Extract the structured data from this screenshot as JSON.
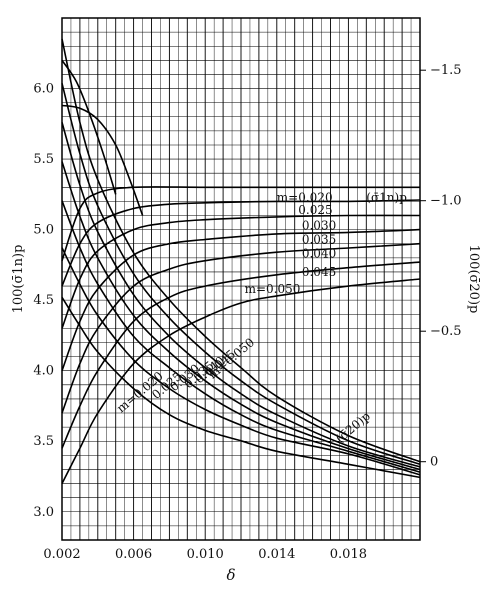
{
  "chart_data": {
    "type": "line",
    "xlabel": "δ",
    "ylabel_left": "100(σ̄1n)p",
    "ylabel_right": "100(σ̄20)p",
    "xlim": [
      0.002,
      0.022
    ],
    "ylim_left": [
      2.8,
      6.5
    ],
    "ylim_right": [
      0.3,
      -1.7
    ],
    "x_ticks": [
      0.002,
      0.006,
      0.01,
      0.014,
      0.018
    ],
    "x_tick_labels": [
      "0.002",
      "0.006",
      "0.010",
      "0.014",
      "0.018"
    ],
    "y_ticks_left": [
      3.0,
      3.5,
      4.0,
      4.5,
      5.0,
      5.5,
      6.0
    ],
    "y_tick_labels_left": [
      "3.0",
      "3.5",
      "4.0",
      "4.5",
      "5.0",
      "5.5",
      "6.0"
    ],
    "y_ticks_right": [
      0,
      -0.5,
      -1.0,
      -1.5
    ],
    "y_tick_labels_right": [
      "0",
      "−0.5",
      "−1.0",
      "−1.5"
    ],
    "grid": true,
    "legend": "none",
    "group_labels": {
      "sigma1n": "(σ̄1n)p",
      "sigma20": "(σ̄20)p"
    },
    "curve_labels_sigma1n": [
      "m=0.020",
      "0.025",
      "0.030",
      "0.035",
      "0.040",
      "0.045",
      "m=0.050"
    ],
    "curve_labels_sigma20": [
      "m=0.050",
      "0.045",
      "0.040",
      "0.035",
      "0.030",
      "0.025",
      "m=0.020"
    ],
    "series": [
      {
        "group": "sigma1n",
        "m": 0.02,
        "axis": "left",
        "points": [
          [
            0.002,
            4.78
          ],
          [
            0.003,
            5.15
          ],
          [
            0.004,
            5.26
          ],
          [
            0.006,
            5.3
          ],
          [
            0.01,
            5.3
          ],
          [
            0.014,
            5.3
          ],
          [
            0.018,
            5.3
          ],
          [
            0.022,
            5.3
          ]
        ]
      },
      {
        "group": "sigma1n",
        "m": 0.025,
        "axis": "left",
        "points": [
          [
            0.002,
            4.6
          ],
          [
            0.003,
            4.9
          ],
          [
            0.004,
            5.05
          ],
          [
            0.006,
            5.15
          ],
          [
            0.008,
            5.18
          ],
          [
            0.01,
            5.19
          ],
          [
            0.014,
            5.2
          ],
          [
            0.018,
            5.2
          ],
          [
            0.022,
            5.21
          ]
        ]
      },
      {
        "group": "sigma1n",
        "m": 0.03,
        "axis": "left",
        "points": [
          [
            0.002,
            4.3
          ],
          [
            0.003,
            4.65
          ],
          [
            0.004,
            4.85
          ],
          [
            0.006,
            5.0
          ],
          [
            0.008,
            5.05
          ],
          [
            0.01,
            5.07
          ],
          [
            0.014,
            5.09
          ],
          [
            0.018,
            5.1
          ],
          [
            0.022,
            5.1
          ]
        ]
      },
      {
        "group": "sigma1n",
        "m": 0.035,
        "axis": "left",
        "points": [
          [
            0.002,
            4.0
          ],
          [
            0.003,
            4.35
          ],
          [
            0.004,
            4.58
          ],
          [
            0.006,
            4.82
          ],
          [
            0.008,
            4.9
          ],
          [
            0.01,
            4.93
          ],
          [
            0.014,
            4.97
          ],
          [
            0.018,
            4.98
          ],
          [
            0.022,
            5.0
          ]
        ]
      },
      {
        "group": "sigma1n",
        "m": 0.04,
        "axis": "left",
        "points": [
          [
            0.002,
            3.7
          ],
          [
            0.003,
            4.05
          ],
          [
            0.004,
            4.3
          ],
          [
            0.006,
            4.6
          ],
          [
            0.008,
            4.72
          ],
          [
            0.01,
            4.78
          ],
          [
            0.014,
            4.84
          ],
          [
            0.018,
            4.87
          ],
          [
            0.022,
            4.9
          ]
        ]
      },
      {
        "group": "sigma1n",
        "m": 0.045,
        "axis": "left",
        "points": [
          [
            0.002,
            3.45
          ],
          [
            0.003,
            3.75
          ],
          [
            0.004,
            4.0
          ],
          [
            0.006,
            4.35
          ],
          [
            0.008,
            4.52
          ],
          [
            0.01,
            4.6
          ],
          [
            0.014,
            4.68
          ],
          [
            0.018,
            4.73
          ],
          [
            0.022,
            4.77
          ]
        ]
      },
      {
        "group": "sigma1n",
        "m": 0.05,
        "axis": "left",
        "points": [
          [
            0.002,
            3.2
          ],
          [
            0.003,
            3.45
          ],
          [
            0.004,
            3.7
          ],
          [
            0.006,
            4.05
          ],
          [
            0.008,
            4.25
          ],
          [
            0.01,
            4.38
          ],
          [
            0.012,
            4.48
          ],
          [
            0.014,
            4.53
          ],
          [
            0.018,
            4.6
          ],
          [
            0.022,
            4.65
          ]
        ]
      },
      {
        "group": "sigma20",
        "m": 0.05,
        "axis": "right",
        "points": [
          [
            0.002,
            -1.62
          ],
          [
            0.003,
            -1.3
          ],
          [
            0.004,
            -1.08
          ],
          [
            0.006,
            -0.8
          ],
          [
            0.008,
            -0.62
          ],
          [
            0.01,
            -0.48
          ],
          [
            0.012,
            -0.36
          ],
          [
            0.014,
            -0.25
          ],
          [
            0.018,
            -0.1
          ],
          [
            0.022,
            0.0
          ]
        ]
      },
      {
        "group": "sigma20",
        "m": 0.045,
        "axis": "right",
        "points": [
          [
            0.002,
            -1.45
          ],
          [
            0.003,
            -1.18
          ],
          [
            0.004,
            -0.98
          ],
          [
            0.006,
            -0.72
          ],
          [
            0.008,
            -0.55
          ],
          [
            0.01,
            -0.42
          ],
          [
            0.012,
            -0.31
          ],
          [
            0.014,
            -0.22
          ],
          [
            0.018,
            -0.08
          ],
          [
            0.022,
            0.01
          ]
        ]
      },
      {
        "group": "sigma20",
        "m": 0.04,
        "axis": "right",
        "points": [
          [
            0.002,
            -1.3
          ],
          [
            0.003,
            -1.06
          ],
          [
            0.004,
            -0.88
          ],
          [
            0.006,
            -0.64
          ],
          [
            0.008,
            -0.48
          ],
          [
            0.01,
            -0.36
          ],
          [
            0.012,
            -0.26
          ],
          [
            0.014,
            -0.18
          ],
          [
            0.018,
            -0.06
          ],
          [
            0.022,
            0.02
          ]
        ]
      },
      {
        "group": "sigma20",
        "m": 0.035,
        "axis": "right",
        "points": [
          [
            0.002,
            -1.15
          ],
          [
            0.003,
            -0.94
          ],
          [
            0.004,
            -0.78
          ],
          [
            0.006,
            -0.56
          ],
          [
            0.008,
            -0.42
          ],
          [
            0.01,
            -0.31
          ],
          [
            0.012,
            -0.22
          ],
          [
            0.014,
            -0.15
          ],
          [
            0.018,
            -0.05
          ],
          [
            0.022,
            0.03
          ]
        ]
      },
      {
        "group": "sigma20",
        "m": 0.03,
        "axis": "right",
        "points": [
          [
            0.002,
            -1.0
          ],
          [
            0.003,
            -0.82
          ],
          [
            0.004,
            -0.68
          ],
          [
            0.006,
            -0.48
          ],
          [
            0.008,
            -0.36
          ],
          [
            0.01,
            -0.26
          ],
          [
            0.012,
            -0.18
          ],
          [
            0.014,
            -0.12
          ],
          [
            0.018,
            -0.04
          ],
          [
            0.022,
            0.04
          ]
        ]
      },
      {
        "group": "sigma20",
        "m": 0.025,
        "axis": "right",
        "points": [
          [
            0.002,
            -0.82
          ],
          [
            0.003,
            -0.68
          ],
          [
            0.004,
            -0.56
          ],
          [
            0.006,
            -0.39
          ],
          [
            0.008,
            -0.28
          ],
          [
            0.01,
            -0.2
          ],
          [
            0.012,
            -0.14
          ],
          [
            0.014,
            -0.09
          ],
          [
            0.018,
            -0.03
          ],
          [
            0.022,
            0.05
          ]
        ]
      },
      {
        "group": "sigma20",
        "m": 0.02,
        "axis": "right",
        "points": [
          [
            0.002,
            -0.63
          ],
          [
            0.003,
            -0.52
          ],
          [
            0.004,
            -0.42
          ],
          [
            0.006,
            -0.28
          ],
          [
            0.008,
            -0.18
          ],
          [
            0.01,
            -0.12
          ],
          [
            0.012,
            -0.08
          ],
          [
            0.014,
            -0.04
          ],
          [
            0.018,
            0.01
          ],
          [
            0.022,
            0.06
          ]
        ]
      },
      {
        "group": "transition",
        "axis": "left",
        "points": [
          [
            0.002,
            5.88
          ],
          [
            0.003,
            5.86
          ],
          [
            0.004,
            5.78
          ],
          [
            0.005,
            5.6
          ],
          [
            0.0058,
            5.35
          ],
          [
            0.0065,
            5.1
          ]
        ]
      },
      {
        "group": "transition",
        "axis": "left",
        "points": [
          [
            0.002,
            6.2
          ],
          [
            0.0028,
            6.05
          ],
          [
            0.0036,
            5.8
          ],
          [
            0.0044,
            5.5
          ],
          [
            0.005,
            5.25
          ]
        ]
      }
    ]
  }
}
